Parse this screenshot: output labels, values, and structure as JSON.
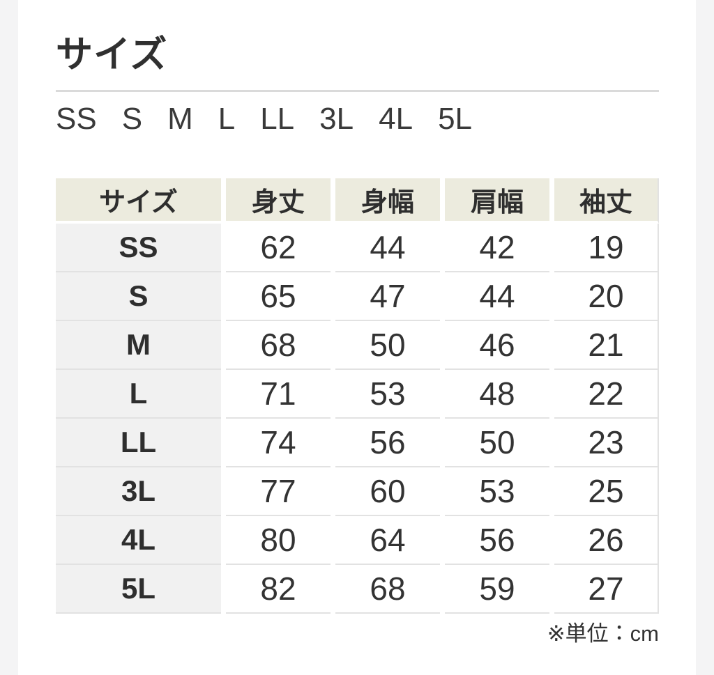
{
  "section": {
    "title": "サイズ",
    "unit_note": "※単位：cm"
  },
  "size_options": [
    "SS",
    "S",
    "M",
    "L",
    "LL",
    "3L",
    "4L",
    "5L"
  ],
  "size_table": {
    "columns": [
      "サイズ",
      "身丈",
      "身幅",
      "肩幅",
      "袖丈"
    ],
    "rows": [
      [
        "SS",
        "62",
        "44",
        "42",
        "19"
      ],
      [
        "S",
        "65",
        "47",
        "44",
        "20"
      ],
      [
        "M",
        "68",
        "50",
        "46",
        "21"
      ],
      [
        "L",
        "71",
        "53",
        "48",
        "22"
      ],
      [
        "LL",
        "74",
        "56",
        "50",
        "23"
      ],
      [
        "3L",
        "77",
        "60",
        "53",
        "25"
      ],
      [
        "4L",
        "80",
        "64",
        "56",
        "26"
      ],
      [
        "5L",
        "82",
        "68",
        "59",
        "27"
      ]
    ],
    "unit": "cm"
  },
  "colors": {
    "header_bg": "#ECEBDE",
    "row_label_bg": "#F1F1F1",
    "table_border": "#E2E2E2",
    "page_bg": "#FFFFFF",
    "outer_bg": "#F4F4F5",
    "divider": "#DADADA",
    "text": "#303030"
  }
}
